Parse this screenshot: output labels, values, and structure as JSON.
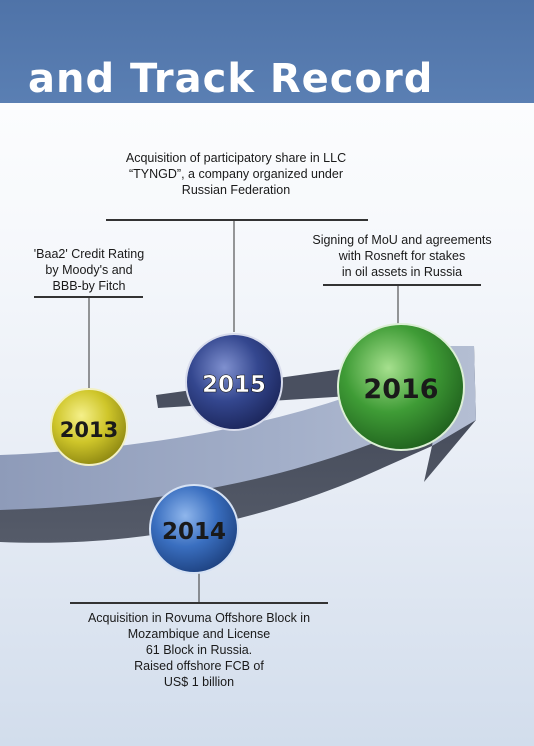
{
  "header": {
    "title": "and Track Record"
  },
  "milestones": [
    {
      "year": "2013",
      "text": [
        "'Baa2' Credit Rating",
        "by Moody's and",
        "BBB-by Fitch"
      ],
      "color": "#c9c31f"
    },
    {
      "year": "2014",
      "text": [
        "Acquisition in Rovuma Offshore Block in",
        "Mozambique and License",
        "61 Block in Russia.",
        "Raised offshore FCB of",
        "US$ 1 billion"
      ],
      "color": "#2f63b3"
    },
    {
      "year": "2015",
      "text": [
        "Acquisition of participatory share in LLC",
        "“TYNGD”, a company organized under",
        "Russian Federation"
      ],
      "color": "#2c3f86"
    },
    {
      "year": "2016",
      "text": [
        "Signing of MoU and agreements",
        "with Rosneft for stakes",
        "in oil assets in Russia"
      ],
      "color": "#3a9a32"
    }
  ]
}
